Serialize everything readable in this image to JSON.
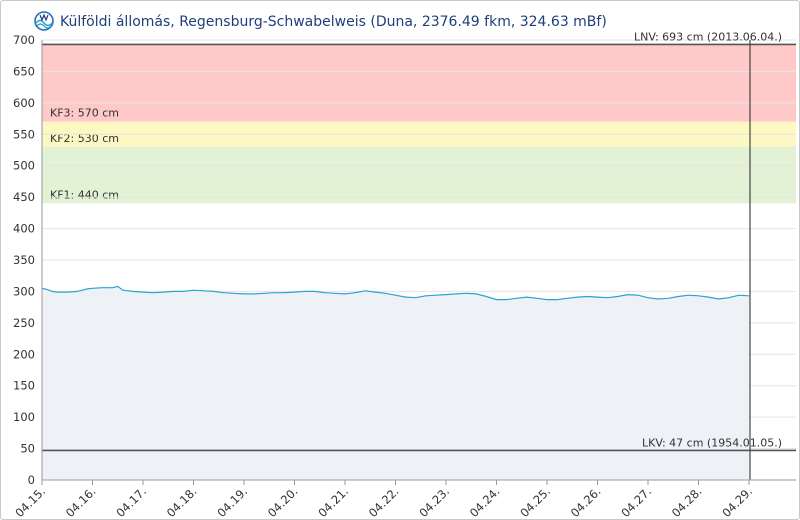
{
  "chart_data": {
    "type": "area",
    "title": "Külföldi állomás, Regensburg-Schwabelweis (Duna, 2376.49 fkm, 324.63 mBf)",
    "xlabel": "",
    "ylabel": "",
    "ylim": [
      0,
      700
    ],
    "yticks": [
      0,
      50,
      100,
      150,
      200,
      250,
      300,
      350,
      400,
      450,
      500,
      550,
      600,
      650,
      700
    ],
    "x_tick_labels": [
      "04.15.",
      "04.16.",
      "04.17.",
      "04.18.",
      "04.19.",
      "04.20.",
      "04.21.",
      "04.22.",
      "04.23.",
      "04.24.",
      "04.25.",
      "04.26.",
      "04.27.",
      "04.28.",
      "04.29."
    ],
    "grid": true,
    "colors": {
      "line": "#2aa3d0",
      "area_fill": "#eef2f7",
      "band_kf3": "#ffc9c9",
      "band_kf2": "#fdf7c2",
      "band_kf1": "#e3f2d4",
      "gridline": "#e4e4e4",
      "reference_line": "#555555"
    },
    "bands": [
      {
        "label": "KF3: 570 cm",
        "from": 570,
        "to": 693,
        "color_key": "band_kf3"
      },
      {
        "label": "KF2: 530 cm",
        "from": 530,
        "to": 570,
        "color_key": "band_kf2"
      },
      {
        "label": "KF1: 440 cm",
        "from": 440,
        "to": 530,
        "color_key": "band_kf1"
      }
    ],
    "reference_lines": [
      {
        "label": "LNV: 693 cm (2013.06.04.)",
        "value": 693
      },
      {
        "label": "LKV: 47 cm (1954.01.05.)",
        "value": 47
      }
    ],
    "current_marker_x": 14.0,
    "series": [
      {
        "x": [
          0,
          0.1,
          0.2,
          0.3,
          0.5,
          0.7,
          0.9,
          1.0,
          1.2,
          1.4,
          1.5,
          1.6,
          1.7,
          1.8,
          2.0,
          2.2,
          2.4,
          2.6,
          2.8,
          3.0,
          3.2,
          3.4,
          3.6,
          3.8,
          4.0,
          4.2,
          4.4,
          4.6,
          4.8,
          5.0,
          5.2,
          5.4,
          5.6,
          5.8,
          6.0,
          6.2,
          6.4,
          6.6,
          6.8,
          7.0,
          7.2,
          7.4,
          7.6,
          7.8,
          8.0,
          8.2,
          8.4,
          8.6,
          8.8,
          9.0,
          9.2,
          9.4,
          9.6,
          9.8,
          10.0,
          10.2,
          10.4,
          10.6,
          10.8,
          11.0,
          11.2,
          11.4,
          11.6,
          11.8,
          12.0,
          12.2,
          12.4,
          12.6,
          12.8,
          13.0,
          13.2,
          13.4,
          13.6,
          13.8,
          14.0
        ],
        "values": [
          305,
          303,
          300,
          299,
          299,
          300,
          304,
          305,
          306,
          306,
          308,
          302,
          301,
          300,
          299,
          298,
          299,
          300,
          300,
          302,
          301,
          300,
          298,
          297,
          296,
          296,
          297,
          298,
          298,
          299,
          300,
          300,
          298,
          297,
          296,
          298,
          301,
          299,
          297,
          294,
          291,
          290,
          293,
          294,
          295,
          296,
          297,
          296,
          292,
          287,
          287,
          289,
          291,
          289,
          287,
          287,
          289,
          291,
          292,
          291,
          290,
          292,
          295,
          294,
          290,
          288,
          289,
          292,
          294,
          293,
          291,
          288,
          290,
          294,
          293
        ]
      }
    ]
  }
}
